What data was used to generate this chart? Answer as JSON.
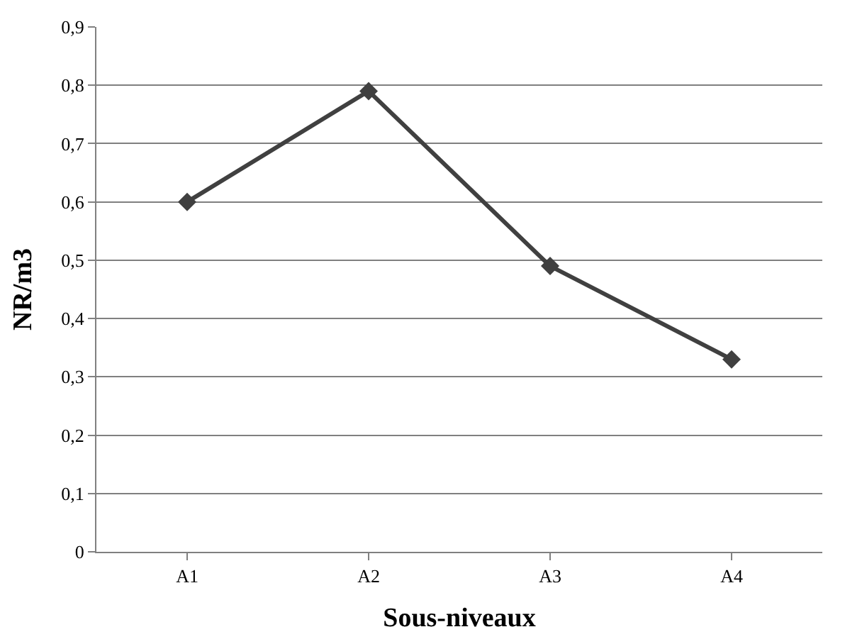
{
  "chart_data": {
    "type": "line",
    "xlabel": "Sous-niveaux",
    "ylabel": "NR/m3",
    "categories": [
      "A1",
      "A2",
      "A3",
      "A4"
    ],
    "series": [
      {
        "color": "#404040",
        "values": [
          0.6,
          0.79,
          0.49,
          0.33
        ]
      }
    ],
    "ylim": [
      0,
      0.9
    ],
    "yticks": [
      0,
      {
        "value": 0.1,
        "label": "0,1"
      },
      {
        "value": 0.2,
        "label": "0,2"
      },
      {
        "value": 0.3,
        "label": "0,3"
      },
      {
        "value": 0.4,
        "label": "0,4"
      },
      {
        "value": 0.5,
        "label": "0,5"
      },
      {
        "value": 0.6,
        "label": "0,6"
      },
      {
        "value": 0.7,
        "label": "0,7"
      },
      {
        "value": 0.8,
        "label": "0,8"
      },
      {
        "value": 0.9,
        "label": "0,9"
      }
    ],
    "grid": "y",
    "marker": "diamond",
    "line_style": "solid"
  }
}
